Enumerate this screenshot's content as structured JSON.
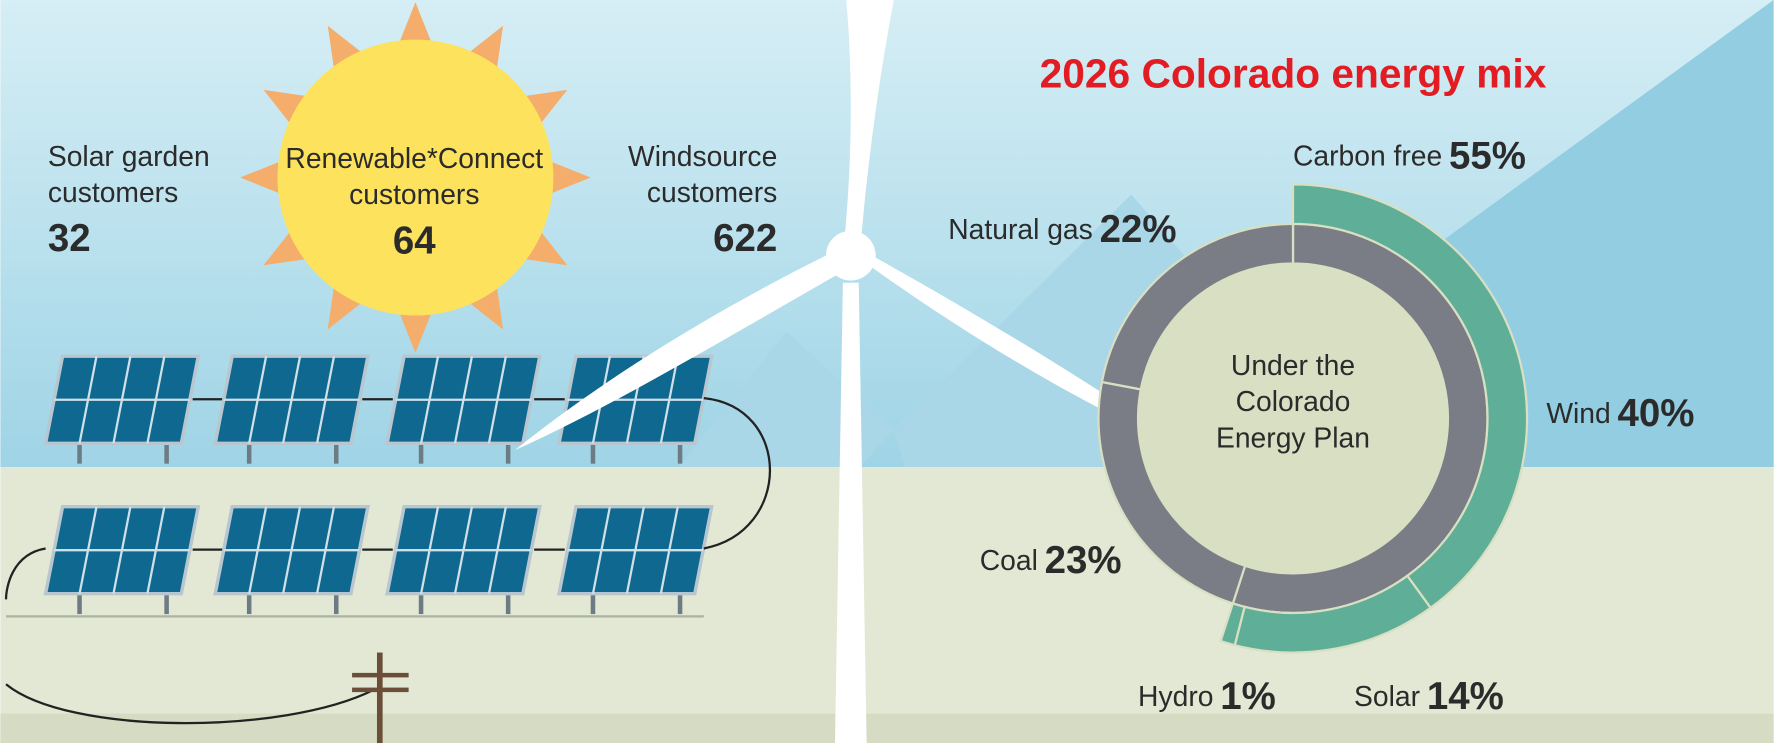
{
  "customers": [
    {
      "label": [
        "Solar garden",
        "customers"
      ],
      "value": "32"
    },
    {
      "label": [
        "Renewable*Connect",
        "customers"
      ],
      "value": "64"
    },
    {
      "label": [
        "Windsource",
        "customers"
      ],
      "value": "622"
    }
  ],
  "chart_data": {
    "type": "donut",
    "title": "2026 Colorado energy mix",
    "center_label": [
      "Under the",
      "Colorado",
      "Energy Plan"
    ],
    "rings": [
      {
        "categories": [
          "Carbon free",
          "Coal",
          "Natural gas"
        ],
        "values": [
          55,
          23,
          22
        ],
        "value_labels": [
          "55%",
          "23%",
          "22%"
        ],
        "colors": [
          "#7a7d85",
          "#7a7d85",
          "#7a7d85"
        ]
      },
      {
        "categories": [
          "Wind",
          "Solar",
          "Hydro"
        ],
        "values": [
          40,
          14,
          1
        ],
        "value_labels": [
          "40%",
          "14%",
          "1%"
        ],
        "colors": [
          "#5fae97",
          "#5fae97",
          "#5fae97"
        ]
      }
    ]
  }
}
